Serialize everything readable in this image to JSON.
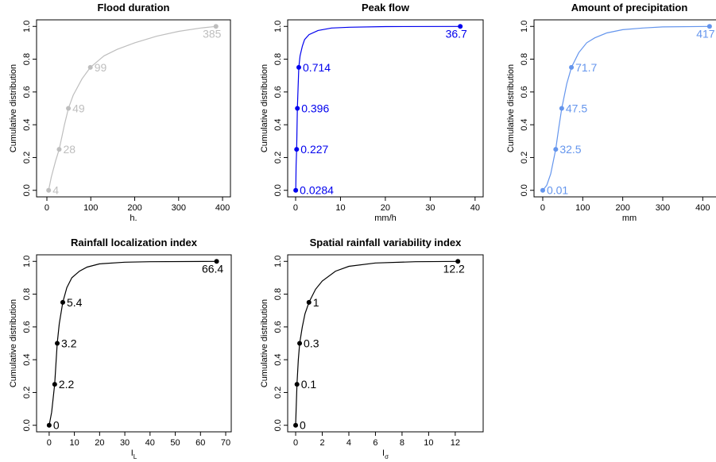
{
  "chart_data": [
    {
      "type": "ecdf",
      "title": "Flood duration",
      "x_label": "h.",
      "y_label": "Cumulative distribution",
      "color": "#bebebe",
      "xlim": [
        -23.5,
        418
      ],
      "xticks": [
        0,
        100,
        200,
        300,
        400
      ],
      "ylim": [
        -0.04,
        1.04
      ],
      "yticks": [
        {
          "value": 0,
          "label": "0.0"
        },
        {
          "value": 0.2,
          "label": "0.2"
        },
        {
          "value": 0.4,
          "label": "0.4"
        },
        {
          "value": 0.6,
          "label": "0.6"
        },
        {
          "value": 0.8,
          "label": "0.8"
        },
        {
          "value": 1,
          "label": "1.0"
        }
      ],
      "curve": {
        "x": [
          4,
          10,
          20,
          28,
          40,
          49,
          60,
          80,
          99,
          130,
          160,
          200,
          250,
          300,
          350,
          385
        ],
        "y": [
          0,
          0.08,
          0.18,
          0.25,
          0.4,
          0.5,
          0.58,
          0.68,
          0.75,
          0.82,
          0.86,
          0.9,
          0.94,
          0.97,
          0.99,
          1
        ]
      },
      "points": {
        "x": [
          4,
          28,
          49,
          99,
          385
        ],
        "y": [
          0,
          0.25,
          0.5,
          0.75,
          1
        ]
      }
    },
    {
      "type": "ecdf",
      "title": "Peak flow",
      "x_label": "mm/h",
      "y_label": "Cumulative distribution",
      "color": "#0000ee",
      "xlim": [
        -1.77,
        41.8
      ],
      "xticks": [
        0,
        10,
        20,
        30,
        40
      ],
      "ylim": [
        -0.04,
        1.04
      ],
      "yticks": [
        {
          "value": 0,
          "label": "0.0"
        },
        {
          "value": 0.2,
          "label": "0.2"
        },
        {
          "value": 0.4,
          "label": "0.4"
        },
        {
          "value": 0.6,
          "label": "0.6"
        },
        {
          "value": 0.8,
          "label": "0.8"
        },
        {
          "value": 1,
          "label": "1.0"
        }
      ],
      "curve": {
        "x": [
          0.0284,
          0.1,
          0.227,
          0.396,
          0.714,
          1,
          1.5,
          2,
          3,
          5,
          8,
          12,
          20,
          36.7
        ],
        "y": [
          0,
          0.15,
          0.25,
          0.5,
          0.75,
          0.82,
          0.88,
          0.92,
          0.95,
          0.975,
          0.99,
          0.995,
          0.999,
          1
        ]
      },
      "points": {
        "x": [
          0.0284,
          0.227,
          0.396,
          0.714,
          36.7
        ],
        "y": [
          0,
          0.25,
          0.5,
          0.75,
          1
        ]
      }
    },
    {
      "type": "ecdf",
      "title": "Amount of precipitation",
      "x_label": "mm",
      "y_label": "Cumulative distribution",
      "color": "#6495ed",
      "xlim": [
        -21.8,
        455
      ],
      "xticks": [
        0,
        100,
        200,
        300,
        400
      ],
      "ylim": [
        -0.04,
        1.04
      ],
      "yticks": [
        {
          "value": 0,
          "label": "0.0"
        },
        {
          "value": 0.2,
          "label": "0.2"
        },
        {
          "value": 0.4,
          "label": "0.4"
        },
        {
          "value": 0.6,
          "label": "0.6"
        },
        {
          "value": 0.8,
          "label": "0.8"
        },
        {
          "value": 1,
          "label": "1.0"
        }
      ],
      "curve": {
        "x": [
          0.01,
          10,
          20,
          32.5,
          40,
          47.5,
          60,
          71.7,
          90,
          110,
          130,
          160,
          200,
          250,
          300,
          417
        ],
        "y": [
          0,
          0.03,
          0.1,
          0.25,
          0.38,
          0.5,
          0.65,
          0.75,
          0.84,
          0.9,
          0.93,
          0.96,
          0.98,
          0.99,
          0.997,
          1
        ]
      },
      "points": {
        "x": [
          0.01,
          32.5,
          47.5,
          71.7,
          417
        ],
        "y": [
          0,
          0.25,
          0.5,
          0.75,
          1
        ]
      }
    },
    {
      "type": "ecdf",
      "title": "Rainfall localization index",
      "x_label": "I",
      "x_label_subscript": "L",
      "y_label": "Cumulative distribution",
      "color": "#000000",
      "xlim": [
        -5,
        72.2
      ],
      "xticks": [
        0,
        10,
        20,
        30,
        40,
        50,
        60,
        70
      ],
      "ylim": [
        -0.04,
        1.04
      ],
      "yticks": [
        {
          "value": 0,
          "label": "0.0"
        },
        {
          "value": 0.2,
          "label": "0.2"
        },
        {
          "value": 0.4,
          "label": "0.4"
        },
        {
          "value": 0.6,
          "label": "0.6"
        },
        {
          "value": 0.8,
          "label": "0.8"
        },
        {
          "value": 1,
          "label": "1.0"
        }
      ],
      "curve": {
        "x": [
          0,
          1,
          2.2,
          3.2,
          4,
          5.4,
          7,
          9,
          12,
          15,
          20,
          30,
          40,
          66.4
        ],
        "y": [
          0,
          0.08,
          0.25,
          0.5,
          0.62,
          0.75,
          0.84,
          0.9,
          0.94,
          0.965,
          0.985,
          0.995,
          0.998,
          1
        ]
      },
      "points": {
        "x": [
          0,
          2.2,
          3.2,
          5.4,
          66.4
        ],
        "y": [
          0,
          0.25,
          0.5,
          0.75,
          1
        ]
      }
    },
    {
      "type": "ecdf",
      "title": "Spatial rainfall variability index",
      "x_label": "I",
      "x_label_subscript": "σ",
      "y_label": "Cumulative distribution",
      "color": "#000000",
      "xlim": [
        -0.6,
        14.1
      ],
      "xticks": [
        0,
        2,
        4,
        6,
        8,
        10,
        12
      ],
      "ylim": [
        -0.04,
        1.04
      ],
      "yticks": [
        {
          "value": 0,
          "label": "0.0"
        },
        {
          "value": 0.2,
          "label": "0.2"
        },
        {
          "value": 0.4,
          "label": "0.4"
        },
        {
          "value": 0.6,
          "label": "0.6"
        },
        {
          "value": 0.8,
          "label": "0.8"
        },
        {
          "value": 1,
          "label": "1.0"
        }
      ],
      "curve": {
        "x": [
          0,
          0.1,
          0.2,
          0.3,
          0.5,
          0.7,
          1,
          1.5,
          2,
          3,
          4,
          6,
          9,
          12.2
        ],
        "y": [
          0,
          0.25,
          0.4,
          0.5,
          0.6,
          0.68,
          0.75,
          0.83,
          0.88,
          0.94,
          0.97,
          0.99,
          0.998,
          1
        ]
      },
      "points": {
        "x": [
          0,
          0.1,
          0.3,
          1,
          12.2
        ],
        "y": [
          0,
          0.25,
          0.5,
          0.75,
          1
        ]
      }
    }
  ]
}
